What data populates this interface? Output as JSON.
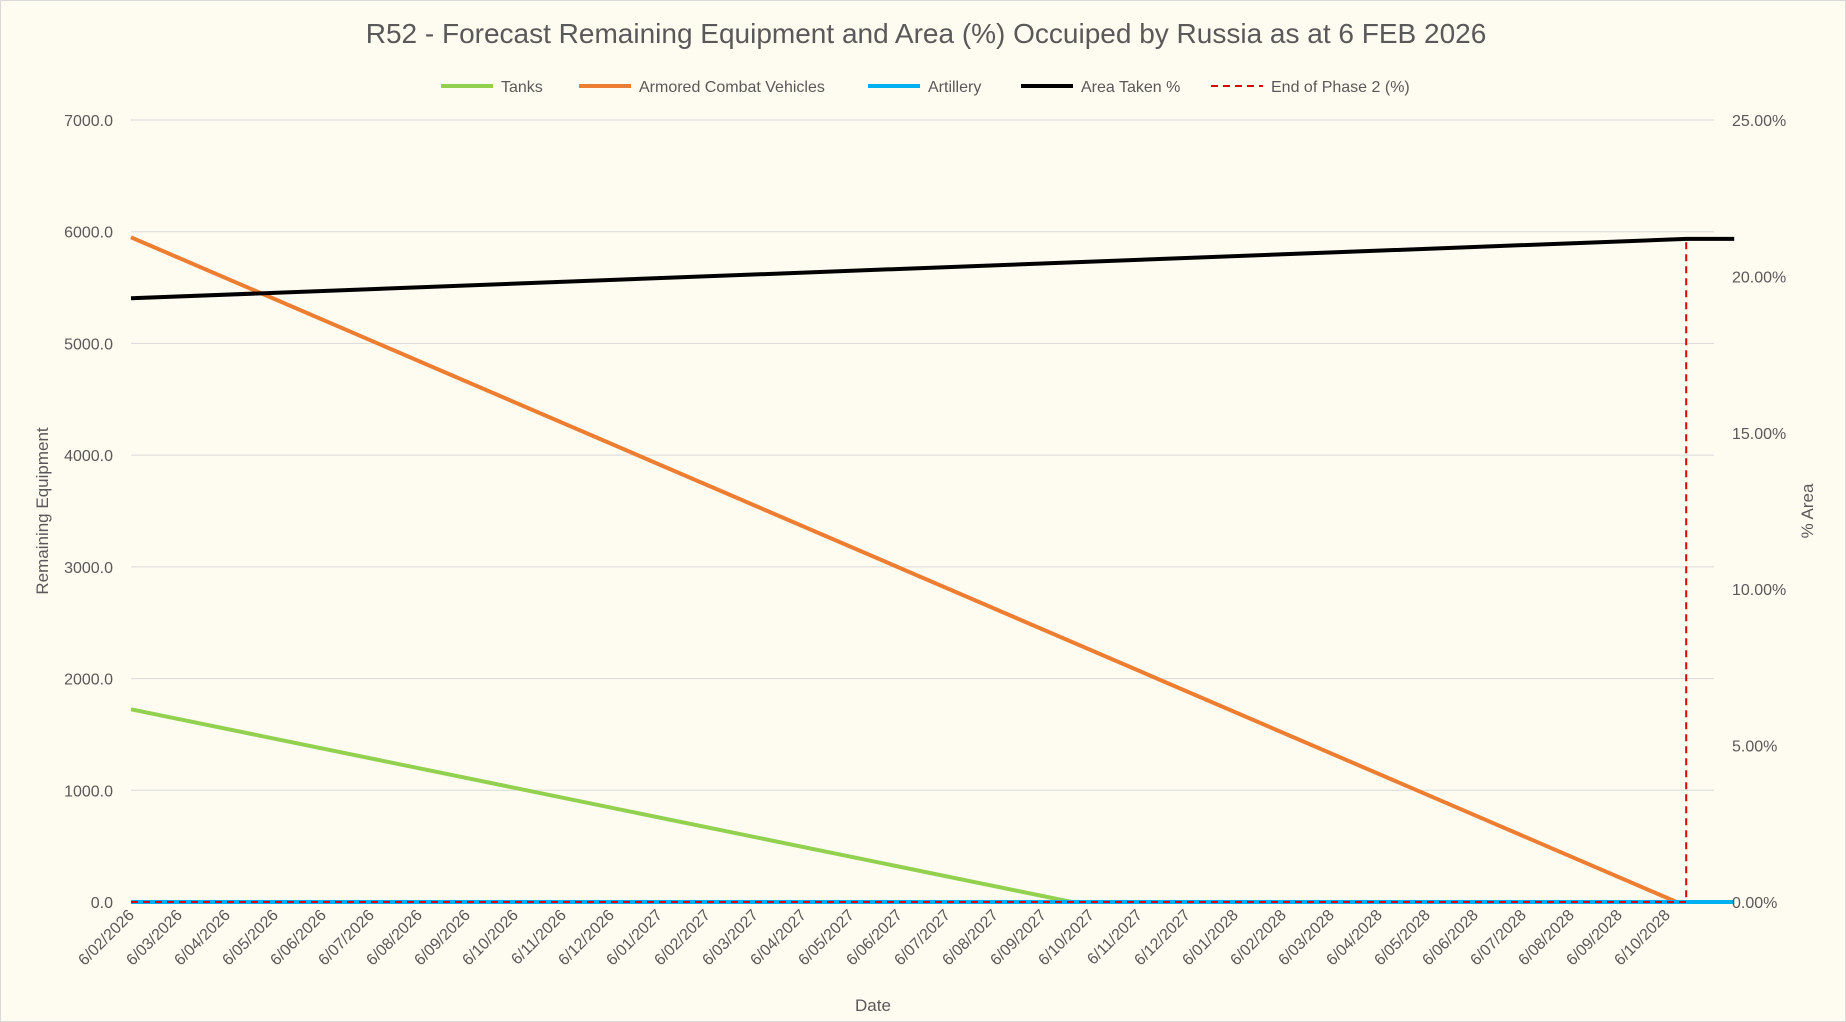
{
  "chart_data": {
    "type": "line",
    "title": "R52 - Forecast Remaining Equipment and Area (%) Occuiped by Russia as at 6 FEB 2026",
    "xlabel": "Date",
    "ylabel": "Remaining Equipment",
    "y2label": "% Area",
    "ylim": [
      0,
      7000
    ],
    "y2lim": [
      0,
      25
    ],
    "grid": true,
    "legend_position": "top",
    "categories": [
      "6/02/2026",
      "6/03/2026",
      "6/04/2026",
      "6/05/2026",
      "6/06/2026",
      "6/07/2026",
      "6/08/2026",
      "6/09/2026",
      "6/10/2026",
      "6/11/2026",
      "6/12/2026",
      "6/01/2027",
      "6/02/2027",
      "6/03/2027",
      "6/04/2027",
      "6/05/2027",
      "6/06/2027",
      "6/07/2027",
      "6/08/2027",
      "6/09/2027",
      "6/10/2027",
      "6/11/2027",
      "6/12/2027",
      "6/01/2028",
      "6/02/2028",
      "6/03/2028",
      "6/04/2028",
      "6/05/2028",
      "6/06/2028",
      "6/07/2028",
      "6/08/2028",
      "6/09/2028",
      "6/10/2028"
    ],
    "y_ticks": [
      "0.0",
      "1000.0",
      "2000.0",
      "3000.0",
      "4000.0",
      "5000.0",
      "6000.0",
      "7000.0"
    ],
    "y2_ticks": [
      "0.00%",
      "5.00%",
      "10.00%",
      "15.00%",
      "20.00%",
      "25.00%"
    ],
    "series": [
      {
        "name": "Tanks",
        "axis": "left",
        "color": "#92d050",
        "style": "solid",
        "points": [
          [
            0,
            1725
          ],
          [
            19.6,
            0
          ],
          [
            33.4,
            0
          ]
        ]
      },
      {
        "name": "Armored Combat Vehicles",
        "axis": "left",
        "color": "#ed7d31",
        "style": "solid",
        "points": [
          [
            0,
            5950
          ],
          [
            32.2,
            0
          ]
        ]
      },
      {
        "name": "Artillery",
        "axis": "left",
        "color": "#00b0f0",
        "style": "solid",
        "points": [
          [
            0,
            0
          ],
          [
            33.4,
            0
          ]
        ]
      },
      {
        "name": "Area Taken %",
        "axis": "right",
        "color": "#000000",
        "style": "solid",
        "points": [
          [
            0,
            19.3
          ],
          [
            32.4,
            21.2
          ],
          [
            33.4,
            21.2
          ]
        ]
      },
      {
        "name": "End of Phase 2 (%)",
        "axis": "right",
        "color": "#e00000",
        "style": "dashed",
        "points": [
          [
            0,
            0
          ],
          [
            32.4,
            0
          ],
          [
            32.4,
            21.2
          ]
        ]
      }
    ]
  }
}
